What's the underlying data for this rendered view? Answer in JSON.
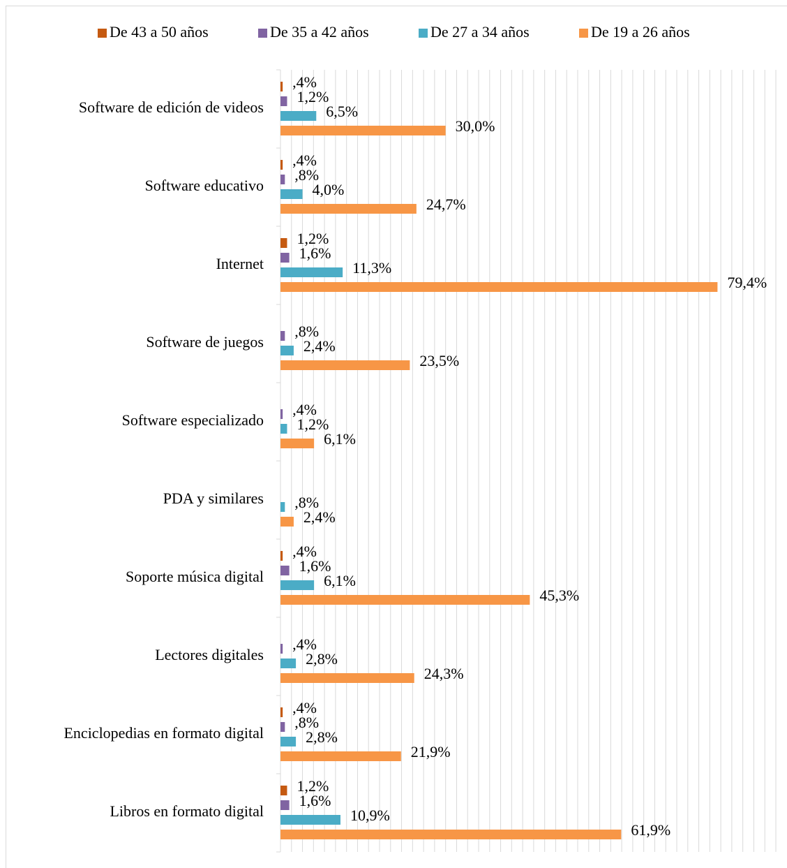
{
  "chart_data": {
    "type": "hbar",
    "categories": [
      "Software de edición de videos",
      "Software educativo",
      "Internet",
      "Software de juegos",
      "Software especializado",
      "PDA y similares",
      "Soporte música digital",
      "Lectores digitales",
      "Enciclopedias en formato digital",
      "Libros en formato digital"
    ],
    "series": [
      {
        "name": "De 43 a 50 años",
        "color": "#c55a11",
        "values": [
          0.4,
          0.4,
          1.2,
          null,
          null,
          null,
          0.4,
          null,
          0.4,
          1.2
        ],
        "value_labels": [
          ",4%",
          ",4%",
          "1,2%",
          null,
          null,
          null,
          ",4%",
          null,
          ",4%",
          "1,2%"
        ]
      },
      {
        "name": "De 35 a 42 años",
        "color": "#8064a2",
        "values": [
          1.2,
          0.8,
          1.6,
          0.8,
          0.4,
          null,
          1.6,
          0.4,
          0.8,
          1.6
        ],
        "value_labels": [
          "1,2%",
          ",8%",
          "1,6%",
          ",8%",
          ",4%",
          null,
          "1,6%",
          ",4%",
          ",8%",
          "1,6%"
        ]
      },
      {
        "name": "De 27 a 34 años",
        "color": "#4bacc6",
        "values": [
          6.5,
          4.0,
          11.3,
          2.4,
          1.2,
          0.8,
          6.1,
          2.8,
          2.8,
          10.9
        ],
        "value_labels": [
          "6,5%",
          "4,0%",
          "11,3%",
          "2,4%",
          "1,2%",
          ",8%",
          "6,1%",
          "2,8%",
          "2,8%",
          "10,9%"
        ]
      },
      {
        "name": "De 19 a 26 años",
        "color": "#f79646",
        "values": [
          30.0,
          24.7,
          79.4,
          23.5,
          6.1,
          2.4,
          45.3,
          24.3,
          21.9,
          61.9
        ],
        "value_labels": [
          "30,0%",
          "24,7%",
          "79,4%",
          "23,5%",
          "6,1%",
          "2,4%",
          "45,3%",
          "24,3%",
          "21,9%",
          "61,9%"
        ]
      }
    ],
    "xlim": [
      0,
      90
    ],
    "xticks": [
      0,
      2,
      4,
      6,
      8,
      10,
      12,
      14,
      16,
      18,
      20,
      22,
      24,
      26,
      28,
      30,
      32,
      34,
      36,
      38,
      40,
      42,
      44,
      46,
      48,
      50,
      52,
      54,
      56,
      58,
      60,
      62,
      64,
      66,
      68,
      70,
      72,
      74,
      76,
      78,
      80,
      82,
      84,
      86,
      88,
      90
    ],
    "grid": true,
    "legend": "top"
  }
}
